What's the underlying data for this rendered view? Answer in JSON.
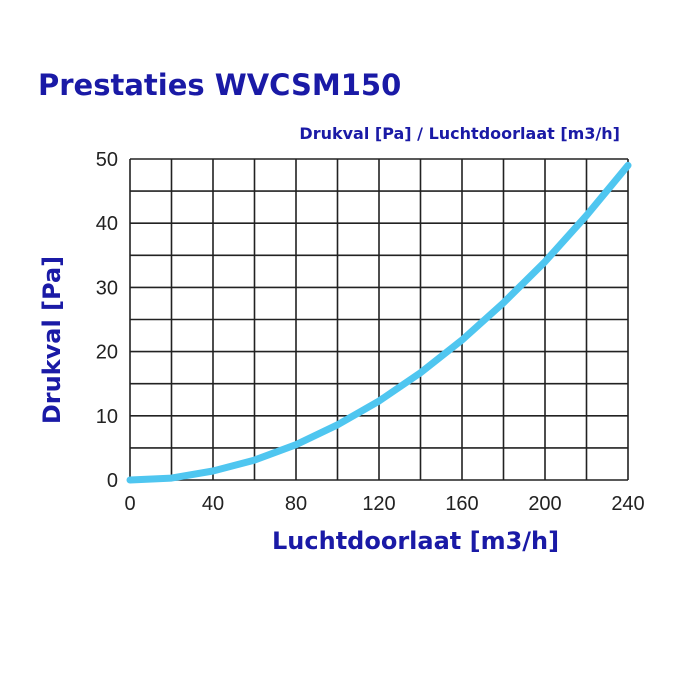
{
  "chart_data": {
    "type": "line",
    "title": "Prestaties WVCSM150",
    "subtitle": "Drukval [Pa] / Luchtdoorlaat [m3/h]",
    "xlabel": "Luchtdoorlaat [m3/h]",
    "ylabel": "Drukval [Pa]",
    "xlim": [
      0,
      240
    ],
    "ylim": [
      0,
      50
    ],
    "x_ticks": [
      "0",
      "40",
      "80",
      "120",
      "160",
      "200",
      "240"
    ],
    "y_ticks": [
      "0",
      "10",
      "20",
      "30",
      "40",
      "50"
    ],
    "grid": true,
    "series": [
      {
        "color": "#4fc6f0",
        "x": [
          0,
          20,
          40,
          60,
          80,
          100,
          120,
          140,
          160,
          180,
          200,
          220,
          240
        ],
        "y": [
          0,
          0.3,
          1.4,
          3.1,
          5.5,
          8.6,
          12.3,
          16.7,
          21.8,
          27.6,
          34.0,
          41.2,
          49.0
        ]
      }
    ]
  }
}
